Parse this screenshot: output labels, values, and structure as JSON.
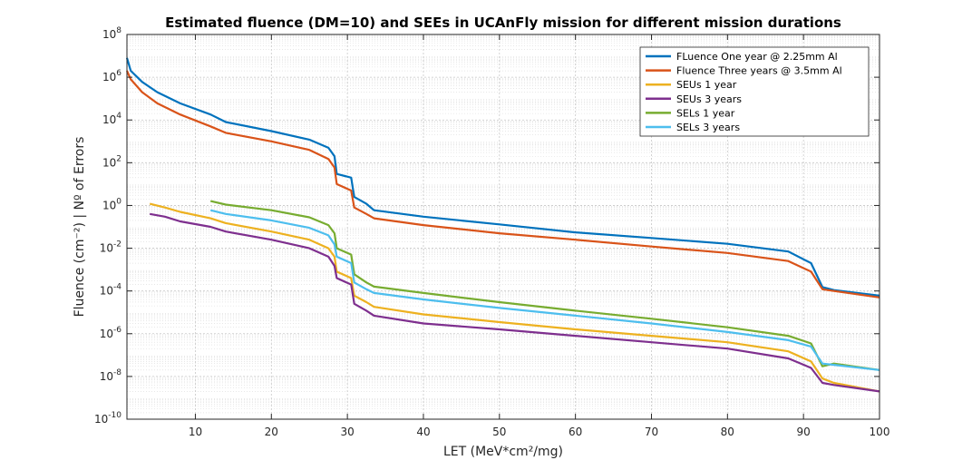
{
  "chart_data": {
    "type": "line",
    "title": "Estimated fluence (DM=10) and SEEs in UCAnFly mission for different mission durations",
    "xlabel": "LET (MeV*cm²/mg)",
    "ylabel": "Fluence (cm⁻²) | Nº of Errors",
    "xlim": [
      1,
      100
    ],
    "ylim_exponent": [
      -10,
      8
    ],
    "yscale": "log",
    "grid": true,
    "legend_position": "top-right",
    "x_ticks": [
      10,
      20,
      30,
      40,
      50,
      60,
      70,
      80,
      90,
      100
    ],
    "y_ticks": [
      {
        "exp": -10,
        "label": "10",
        "sup": "-10"
      },
      {
        "exp": -8,
        "label": "10",
        "sup": "-8"
      },
      {
        "exp": -6,
        "label": "10",
        "sup": "-6"
      },
      {
        "exp": -4,
        "label": "10",
        "sup": "-4"
      },
      {
        "exp": -2,
        "label": "10",
        "sup": "-2"
      },
      {
        "exp": 0,
        "label": "10",
        "sup": "0"
      },
      {
        "exp": 2,
        "label": "10",
        "sup": "2"
      },
      {
        "exp": 4,
        "label": "10",
        "sup": "4"
      },
      {
        "exp": 6,
        "label": "10",
        "sup": "6"
      },
      {
        "exp": 8,
        "label": "10",
        "sup": "8"
      }
    ],
    "series": [
      {
        "name": "FLuence One year @ 2.25mm Al",
        "color": "#0072BD",
        "points": [
          [
            1,
            8000000.0
          ],
          [
            1.5,
            2000000.0
          ],
          [
            3,
            600000.0
          ],
          [
            5,
            200000.0
          ],
          [
            8,
            60000.0
          ],
          [
            12,
            18000.0
          ],
          [
            14,
            8000.0
          ],
          [
            20,
            3000.0
          ],
          [
            25,
            1200.0
          ],
          [
            27.5,
            500.0
          ],
          [
            28.3,
            200.0
          ],
          [
            28.6,
            30.0
          ],
          [
            30.5,
            20.0
          ],
          [
            30.9,
            2.5
          ],
          [
            32.5,
            1.2
          ],
          [
            33.5,
            0.6
          ],
          [
            40,
            0.3
          ],
          [
            50,
            0.13
          ],
          [
            60,
            0.055
          ],
          [
            70,
            0.03
          ],
          [
            80,
            0.016
          ],
          [
            88,
            0.007
          ],
          [
            91,
            0.002
          ],
          [
            92.5,
            0.00015
          ],
          [
            94,
            0.00011
          ],
          [
            100,
            6e-05
          ]
        ]
      },
      {
        "name": "Fluence Three years @ 3.5mm Al",
        "color": "#D95319",
        "points": [
          [
            1,
            2000000.0
          ],
          [
            1.5,
            800000.0
          ],
          [
            3,
            200000.0
          ],
          [
            5,
            60000.0
          ],
          [
            8,
            18000.0
          ],
          [
            12,
            5000.0
          ],
          [
            14,
            2500.0
          ],
          [
            20,
            1000.0
          ],
          [
            25,
            400.0
          ],
          [
            27.5,
            150.0
          ],
          [
            28.3,
            60.0
          ],
          [
            28.6,
            10.0
          ],
          [
            30.5,
            5
          ],
          [
            30.9,
            0.8
          ],
          [
            32.5,
            0.4
          ],
          [
            33.5,
            0.25
          ],
          [
            40,
            0.12
          ],
          [
            50,
            0.05
          ],
          [
            60,
            0.025
          ],
          [
            70,
            0.012
          ],
          [
            80,
            0.006
          ],
          [
            88,
            0.0025
          ],
          [
            91,
            0.0008
          ],
          [
            92.5,
            0.00012
          ],
          [
            94,
            0.0001
          ],
          [
            100,
            5e-05
          ]
        ]
      },
      {
        "name": "SEUs 1 year",
        "color": "#EDB120",
        "points": [
          [
            4,
            1.2
          ],
          [
            6,
            0.8
          ],
          [
            8,
            0.5
          ],
          [
            12,
            0.25
          ],
          [
            14,
            0.15
          ],
          [
            20,
            0.06
          ],
          [
            25,
            0.025
          ],
          [
            27.5,
            0.01
          ],
          [
            28.3,
            0.004
          ],
          [
            28.6,
            0.0008
          ],
          [
            30.5,
            0.0004
          ],
          [
            30.9,
            6e-05
          ],
          [
            32.5,
            3e-05
          ],
          [
            33.5,
            1.8e-05
          ],
          [
            40,
            8e-06
          ],
          [
            50,
            3.5e-06
          ],
          [
            60,
            1.6e-06
          ],
          [
            70,
            8e-07
          ],
          [
            80,
            4e-07
          ],
          [
            88,
            1.5e-07
          ],
          [
            91,
            5e-08
          ],
          [
            92.5,
            8e-09
          ],
          [
            94,
            5e-09
          ],
          [
            100,
            2e-09
          ]
        ]
      },
      {
        "name": "SEUs 3 years",
        "color": "#7E2F8E",
        "points": [
          [
            4,
            0.4
          ],
          [
            6,
            0.3
          ],
          [
            8,
            0.18
          ],
          [
            12,
            0.1
          ],
          [
            14,
            0.06
          ],
          [
            20,
            0.025
          ],
          [
            25,
            0.01
          ],
          [
            27.5,
            0.004
          ],
          [
            28.3,
            0.0015
          ],
          [
            28.6,
            0.0004
          ],
          [
            30.5,
            0.0002
          ],
          [
            30.9,
            2.5e-05
          ],
          [
            32.5,
            1.2e-05
          ],
          [
            33.5,
            7e-06
          ],
          [
            40,
            3e-06
          ],
          [
            50,
            1.6e-06
          ],
          [
            60,
            8e-07
          ],
          [
            70,
            4e-07
          ],
          [
            80,
            2e-07
          ],
          [
            88,
            7e-08
          ],
          [
            91,
            2.5e-08
          ],
          [
            92.5,
            5e-09
          ],
          [
            94,
            4e-09
          ],
          [
            100,
            2e-09
          ]
        ]
      },
      {
        "name": "SELs 1 year",
        "color": "#77AC30",
        "points": [
          [
            12,
            1.6
          ],
          [
            14,
            1.1
          ],
          [
            20,
            0.6
          ],
          [
            25,
            0.28
          ],
          [
            27.5,
            0.12
          ],
          [
            28.3,
            0.05
          ],
          [
            28.6,
            0.01
          ],
          [
            30.5,
            0.005
          ],
          [
            30.9,
            0.0006
          ],
          [
            32.5,
            0.00025
          ],
          [
            33.5,
            0.00016
          ],
          [
            40,
            8e-05
          ],
          [
            50,
            3e-05
          ],
          [
            60,
            1.2e-05
          ],
          [
            70,
            5e-06
          ],
          [
            80,
            2e-06
          ],
          [
            88,
            8e-07
          ],
          [
            91,
            3.5e-07
          ],
          [
            92.5,
            3e-08
          ],
          [
            94,
            4e-08
          ],
          [
            100,
            2e-08
          ]
        ]
      },
      {
        "name": "SELs 3 years",
        "color": "#4DBEEE",
        "points": [
          [
            12,
            0.6
          ],
          [
            14,
            0.4
          ],
          [
            20,
            0.2
          ],
          [
            25,
            0.09
          ],
          [
            27.5,
            0.04
          ],
          [
            28.3,
            0.015
          ],
          [
            28.6,
            0.004
          ],
          [
            30.5,
            0.002
          ],
          [
            30.9,
            0.00025
          ],
          [
            32.5,
            0.00012
          ],
          [
            33.5,
            8e-05
          ],
          [
            40,
            4e-05
          ],
          [
            50,
            1.6e-05
          ],
          [
            60,
            7e-06
          ],
          [
            70,
            3e-06
          ],
          [
            80,
            1.2e-06
          ],
          [
            88,
            5e-07
          ],
          [
            91,
            2.5e-07
          ],
          [
            92.5,
            4e-08
          ],
          [
            94,
            3.5e-08
          ],
          [
            100,
            2e-08
          ]
        ]
      }
    ]
  }
}
